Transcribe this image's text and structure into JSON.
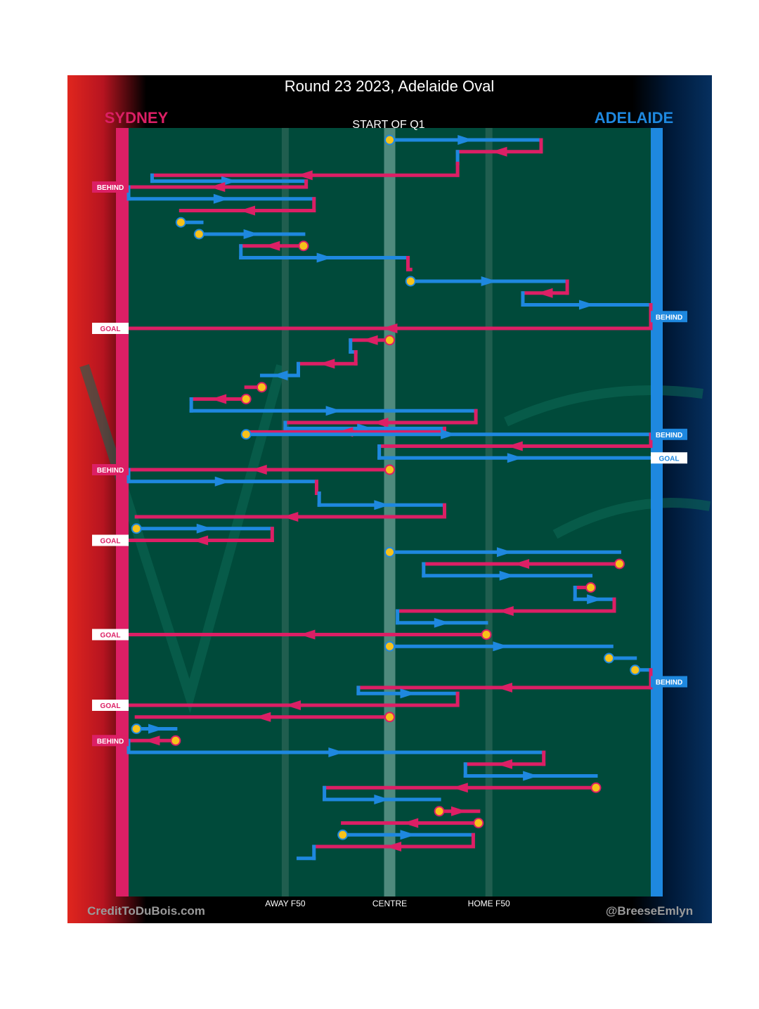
{
  "title": "Round 23 2023, Adelaide Oval",
  "teams": {
    "home": {
      "name": "SYDNEY",
      "color": "#dc1f65"
    },
    "away": {
      "name": "ADELAIDE",
      "color": "#1e88df"
    }
  },
  "field_color": "#004a3a",
  "start_label": "START OF Q1",
  "footer": {
    "left": "CreditToDuBois.com",
    "right": "@BreeseEmlyn"
  },
  "chart_data": {
    "type": "line",
    "description_axis": "x = field position from SYDNEY end (0) to ADELAIDE end (100)",
    "xlim": [
      0,
      100
    ],
    "x_ticks": [
      {
        "value": 30,
        "label": "AWAY F50"
      },
      {
        "value": 50,
        "label": "CENTRE"
      },
      {
        "value": 69,
        "label": "HOME F50"
      }
    ],
    "score_events": [
      {
        "seq": 5,
        "team": "Sydney",
        "label": "BEHIND"
      },
      {
        "seq": 16,
        "team": "Adelaide",
        "label": "BEHIND"
      },
      {
        "seq": 17,
        "team": "Sydney",
        "label": "GOAL"
      },
      {
        "seq": 26,
        "team": "Adelaide",
        "label": "BEHIND"
      },
      {
        "seq": 28,
        "team": "Adelaide",
        "label": "GOAL"
      },
      {
        "seq": 29,
        "team": "Sydney",
        "label": "BEHIND"
      },
      {
        "seq": 35,
        "team": "Sydney",
        "label": "GOAL"
      },
      {
        "seq": 43,
        "team": "Sydney",
        "label": "GOAL"
      },
      {
        "seq": 47,
        "team": "Adelaide",
        "label": "BEHIND"
      },
      {
        "seq": 49,
        "team": "Sydney",
        "label": "GOAL"
      },
      {
        "seq": 52,
        "team": "Sydney",
        "label": "BEHIND"
      }
    ],
    "chains": [
      {
        "team": "Adelaide",
        "start": 50,
        "end": 79,
        "seq": 1,
        "origin": "stoppage"
      },
      {
        "team": "Sydney",
        "start": 79,
        "end": 63,
        "seq": 2
      },
      {
        "team": "Adelaide",
        "start": 63,
        "end": 63,
        "seq": 3
      },
      {
        "team": "Sydney",
        "start": 63,
        "end": 4.5,
        "seq": 4
      },
      {
        "team": "Adelaide",
        "start": 4.5,
        "end": 34,
        "seq": 4.5
      },
      {
        "team": "Sydney",
        "start": 34,
        "end": 0,
        "seq": 5
      },
      {
        "team": "Adelaide",
        "start": 0,
        "end": 35.5,
        "seq": 6
      },
      {
        "team": "Sydney",
        "start": 35.5,
        "end": 10,
        "seq": 7
      },
      {
        "team": "Adelaide",
        "start": 10,
        "end": 14,
        "seq": 8,
        "origin": "stoppage"
      },
      {
        "team": "Adelaide",
        "start": 13.5,
        "end": 33.5,
        "seq": 9,
        "origin": "stoppage"
      },
      {
        "team": "Sydney",
        "start": 33.5,
        "end": 21.5,
        "seq": 10,
        "origin": "stoppage"
      },
      {
        "team": "Adelaide",
        "start": 21.5,
        "end": 53.5,
        "seq": 11
      },
      {
        "team": "Sydney",
        "start": 53.5,
        "end": 54,
        "seq": 12
      },
      {
        "team": "Adelaide",
        "start": 54,
        "end": 84,
        "seq": 13,
        "origin": "stoppage"
      },
      {
        "team": "Sydney",
        "start": 84,
        "end": 75.5,
        "seq": 14
      },
      {
        "team": "Adelaide",
        "start": 75.5,
        "end": 100,
        "seq": 15
      },
      {
        "team": "Sydney",
        "start": 100,
        "end": 0,
        "seq": 17
      },
      {
        "team": "Sydney",
        "start": 50,
        "end": 42.5,
        "seq": 18,
        "origin": "stoppage"
      },
      {
        "team": "Adelaide",
        "start": 42.5,
        "end": 43.5,
        "seq": 19
      },
      {
        "team": "Sydney",
        "start": 43.5,
        "end": 32.5,
        "seq": 20
      },
      {
        "team": "Adelaide",
        "start": 32.5,
        "end": 25.5,
        "seq": 21
      },
      {
        "team": "Sydney",
        "start": 25.5,
        "end": 22.5,
        "seq": 22,
        "origin": "stoppage"
      },
      {
        "team": "Sydney",
        "start": 22.5,
        "end": 12,
        "seq": 23,
        "origin": "stoppage"
      },
      {
        "team": "Adelaide",
        "start": 12,
        "end": 66.5,
        "seq": 24
      },
      {
        "team": "Sydney",
        "start": 66.5,
        "end": 30,
        "seq": 25
      },
      {
        "team": "Adelaide",
        "start": 30,
        "end": 60.5,
        "seq": 25.5
      },
      {
        "team": "Sydney",
        "start": 60.5,
        "end": 22.5,
        "seq": 25.8
      },
      {
        "team": "Adelaide",
        "start": 22.5,
        "end": 100,
        "seq": 26,
        "origin": "stoppage"
      },
      {
        "team": "Sydney",
        "start": 100,
        "end": 48,
        "seq": 27
      },
      {
        "team": "Adelaide",
        "start": 48,
        "end": 100,
        "seq": 28
      },
      {
        "team": "Sydney",
        "start": 50,
        "end": 0,
        "seq": 29,
        "origin": "stoppage"
      },
      {
        "team": "Adelaide",
        "start": 0,
        "end": 36,
        "seq": 30
      },
      {
        "team": "Sydney",
        "start": 36,
        "end": 36.5,
        "seq": 31
      },
      {
        "team": "Adelaide",
        "start": 36.5,
        "end": 60.5,
        "seq": 32
      },
      {
        "team": "Sydney",
        "start": 60.5,
        "end": 1.5,
        "seq": 33
      },
      {
        "team": "Adelaide",
        "start": 1.5,
        "end": 27.5,
        "seq": 34,
        "origin": "stoppage"
      },
      {
        "team": "Sydney",
        "start": 27.5,
        "end": 0,
        "seq": 35
      },
      {
        "team": "Adelaide",
        "start": 50,
        "end": 94,
        "seq": 36,
        "origin": "stoppage"
      },
      {
        "team": "Sydney",
        "start": 94,
        "end": 56.5,
        "seq": 37,
        "origin": "stoppage"
      },
      {
        "team": "Adelaide",
        "start": 56.5,
        "end": 88.5,
        "seq": 38
      },
      {
        "team": "Sydney",
        "start": 88.5,
        "end": 85.5,
        "seq": 39,
        "origin": "stoppage"
      },
      {
        "team": "Adelaide",
        "start": 85.5,
        "end": 93,
        "seq": 40
      },
      {
        "team": "Sydney",
        "start": 93,
        "end": 51.5,
        "seq": 41
      },
      {
        "team": "Adelaide",
        "start": 51.5,
        "end": 68.5,
        "seq": 42
      },
      {
        "team": "Sydney",
        "start": 68.5,
        "end": 0,
        "seq": 43,
        "origin": "stoppage"
      },
      {
        "team": "Adelaide",
        "start": 50,
        "end": 92.5,
        "seq": 44,
        "origin": "stoppage"
      },
      {
        "team": "Adelaide",
        "start": 92,
        "end": 97,
        "seq": 45,
        "origin": "stoppage"
      },
      {
        "team": "Adelaide",
        "start": 97,
        "end": 100,
        "seq": 46,
        "origin": "stoppage"
      },
      {
        "team": "Sydney",
        "start": 100,
        "end": 44,
        "seq": 47.5
      },
      {
        "team": "Adelaide",
        "start": 44,
        "end": 63,
        "seq": 48
      },
      {
        "team": "Sydney",
        "start": 63,
        "end": 0,
        "seq": 49
      },
      {
        "team": "Sydney",
        "start": 50,
        "end": 1.5,
        "seq": 50,
        "origin": "stoppage"
      },
      {
        "team": "Adelaide",
        "start": 1.5,
        "end": 9,
        "seq": 51,
        "origin": "stoppage"
      },
      {
        "team": "Sydney",
        "start": 9,
        "end": 0,
        "seq": 52,
        "origin": "stoppage"
      },
      {
        "team": "Adelaide",
        "start": 0,
        "end": 79.5,
        "seq": 53
      },
      {
        "team": "Sydney",
        "start": 79.5,
        "end": 64.5,
        "seq": 54
      },
      {
        "team": "Adelaide",
        "start": 64.5,
        "end": 89.5,
        "seq": 55
      },
      {
        "team": "Sydney",
        "start": 89.5,
        "end": 37.5,
        "seq": 56,
        "origin": "stoppage"
      },
      {
        "team": "Adelaide",
        "start": 37.5,
        "end": 59.5,
        "seq": 57
      },
      {
        "team": "Sydney",
        "start": 59.5,
        "end": 67,
        "seq": 58,
        "origin": "stoppage"
      },
      {
        "team": "Sydney",
        "start": 67,
        "end": 41,
        "seq": 59,
        "origin": "stoppage"
      },
      {
        "team": "Adelaide",
        "start": 41,
        "end": 66,
        "seq": 60,
        "origin": "stoppage"
      },
      {
        "team": "Sydney",
        "start": 66,
        "end": 35.5,
        "seq": 61
      },
      {
        "team": "Adelaide",
        "start": 35.5,
        "end": 32.5,
        "seq": 62
      }
    ]
  }
}
